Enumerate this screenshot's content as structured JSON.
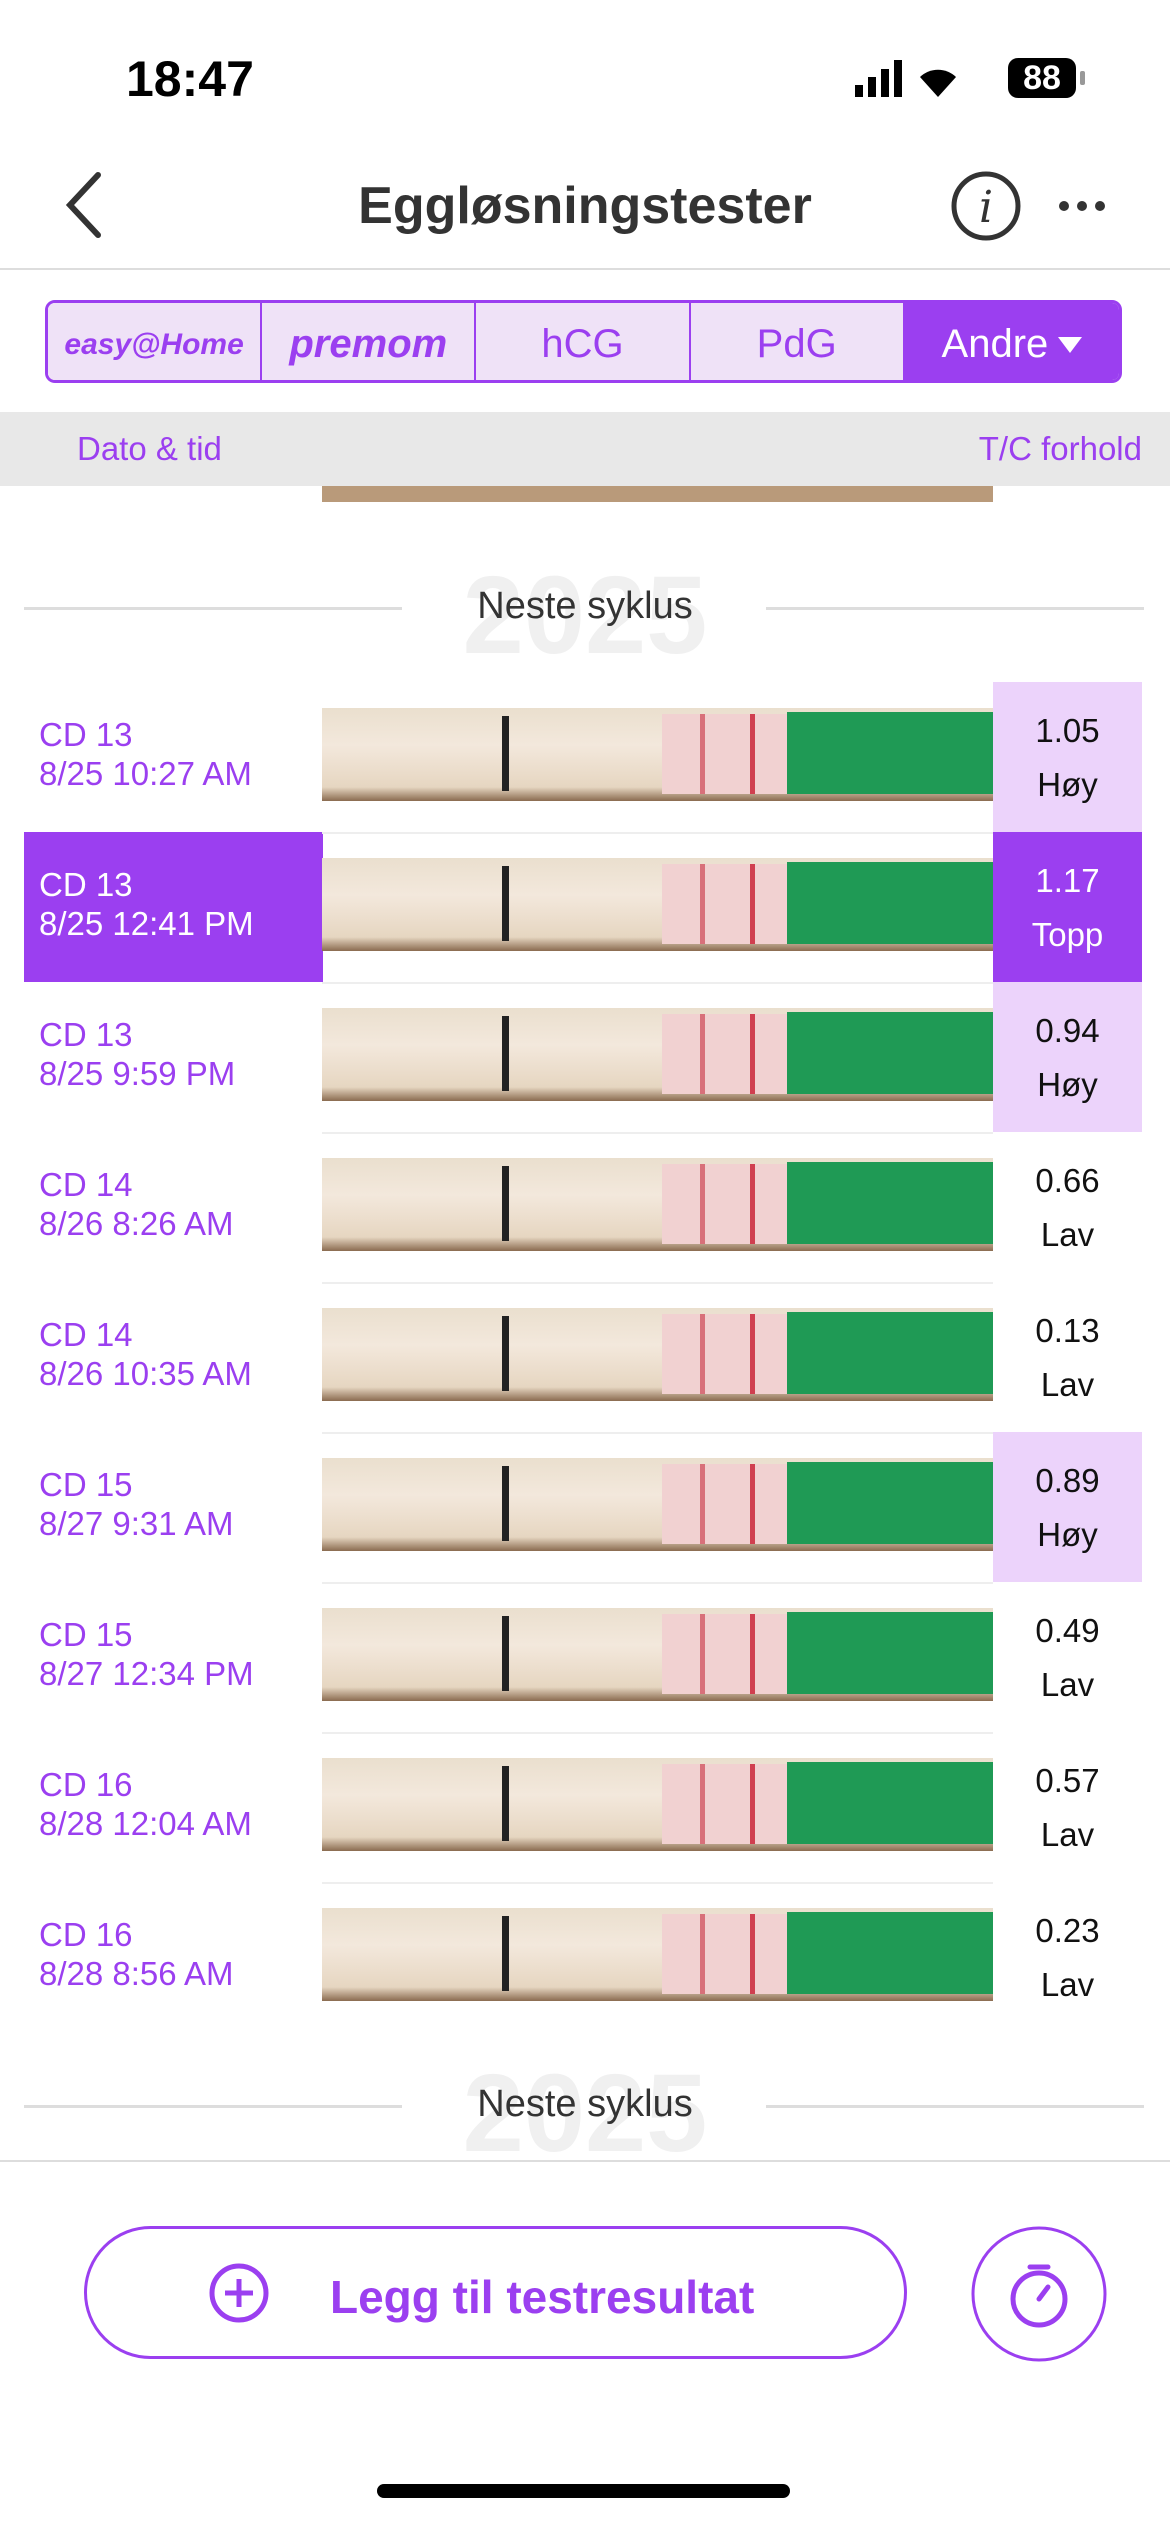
{
  "status": {
    "time": "18:47",
    "battery": "88"
  },
  "header": {
    "title": "Eggløsningstester"
  },
  "tabs": [
    "easy@Home",
    "premom",
    "hCG",
    "PdG",
    "Andre"
  ],
  "columns": {
    "date": "Dato & tid",
    "ratio": "T/C forhold"
  },
  "separator": {
    "label": "Neste syklus",
    "year": "2025"
  },
  "rows": [
    {
      "cd": "CD 13",
      "datetime": "8/25 10:27 AM",
      "ratio": 1.05,
      "level": "Høy",
      "highlight": true
    },
    {
      "cd": "CD 13",
      "datetime": "8/25 12:41 PM",
      "ratio": 1.17,
      "level": "Topp",
      "highlight": true,
      "selected": true
    },
    {
      "cd": "CD 13",
      "datetime": "8/25 9:59 PM",
      "ratio": 0.94,
      "level": "Høy",
      "highlight": true
    },
    {
      "cd": "CD 14",
      "datetime": "8/26 8:26 AM",
      "ratio": 0.66,
      "level": "Lav"
    },
    {
      "cd": "CD 14",
      "datetime": "8/26 10:35 AM",
      "ratio": 0.13,
      "level": "Lav"
    },
    {
      "cd": "CD 15",
      "datetime": "8/27 9:31 AM",
      "ratio": 0.89,
      "level": "Høy",
      "highlight": true
    },
    {
      "cd": "CD 15",
      "datetime": "8/27 12:34 PM",
      "ratio": 0.49,
      "level": "Lav"
    },
    {
      "cd": "CD 16",
      "datetime": "8/28 12:04 AM",
      "ratio": 0.57,
      "level": "Lav"
    },
    {
      "cd": "CD 16",
      "datetime": "8/28 8:56 AM",
      "ratio": 0.23,
      "level": "Lav"
    }
  ],
  "button": {
    "label": "Legg til testresultat"
  }
}
